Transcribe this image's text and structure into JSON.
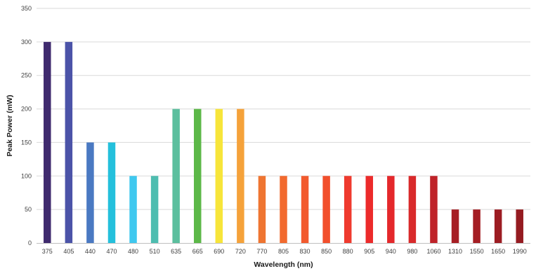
{
  "chart_data": {
    "type": "bar",
    "xlabel": "Wavelength (nm)",
    "ylabel": "Peak Power (mW)",
    "ylim": [
      0,
      350
    ],
    "yticks": [
      0,
      50,
      100,
      150,
      200,
      250,
      300,
      350
    ],
    "grid": true,
    "legend": "none",
    "categories": [
      "375",
      "405",
      "440",
      "470",
      "480",
      "510",
      "635",
      "665",
      "690",
      "720",
      "770",
      "805",
      "830",
      "850",
      "880",
      "905",
      "940",
      "980",
      "1060",
      "1310",
      "1550",
      "1650",
      "1990"
    ],
    "values": [
      300,
      300,
      150,
      150,
      100,
      100,
      200,
      200,
      200,
      200,
      100,
      100,
      100,
      100,
      100,
      100,
      100,
      100,
      100,
      50,
      50,
      50,
      50
    ],
    "colors": [
      "#3f2a6e",
      "#4b53a8",
      "#4a79c2",
      "#24c0dc",
      "#3fc8ef",
      "#4ebdb0",
      "#5cbf9e",
      "#5cb848",
      "#f7e53a",
      "#f5a23a",
      "#ef7531",
      "#f26a2e",
      "#f25a2e",
      "#f24f2c",
      "#ef3a2e",
      "#ec2b2b",
      "#e4282b",
      "#d92a2b",
      "#bf2329",
      "#a61e24",
      "#a41d23",
      "#9c1c22",
      "#951b21"
    ]
  }
}
